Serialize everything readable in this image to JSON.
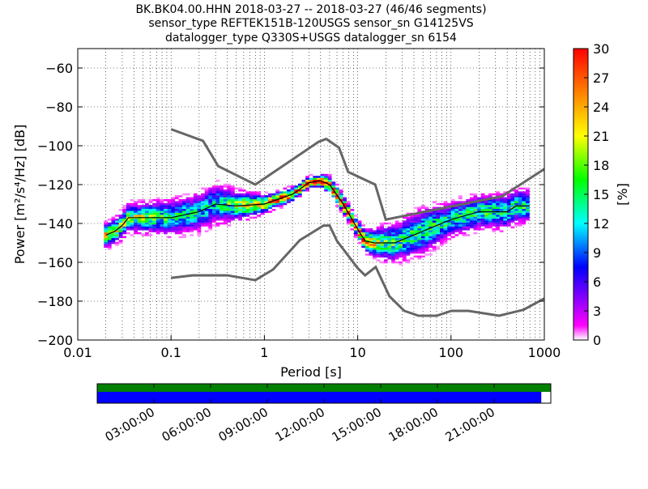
{
  "chart_data": {
    "type": "heatmap",
    "title_lines": [
      "BK.BK04.00.HHN   2018-03-27 -- 2018-03-27  (46/46 segments)",
      "sensor_type REFTEK151B-120USGS sensor_sn G14125VS",
      "datalogger_type Q330S+USGS datalogger_sn 6154"
    ],
    "xlabel": "Period [s]",
    "ylabel": "Power [m²/s⁴/Hz] [dB]",
    "xscale": "log",
    "xlim": [
      0.01,
      1000
    ],
    "ylim": [
      -200,
      -50
    ],
    "xticks": [
      0.01,
      0.1,
      1,
      10,
      100,
      1000
    ],
    "xtick_labels": [
      "0.01",
      "0.1",
      "1",
      "10",
      "100",
      "1000"
    ],
    "yticks": [
      -200,
      -180,
      -160,
      -140,
      -120,
      -100,
      -80,
      -60
    ],
    "ytick_labels": [
      "−200",
      "−180",
      "−160",
      "−140",
      "−120",
      "−100",
      "−80",
      "−60"
    ],
    "grid": true,
    "colorbar": {
      "label": "[%]",
      "range": [
        0,
        30
      ],
      "ticks": [
        0,
        3,
        6,
        9,
        12,
        15,
        18,
        21,
        24,
        27,
        30
      ],
      "tick_labels": [
        "0",
        "3",
        "6",
        "9",
        "12",
        "15",
        "18",
        "21",
        "24",
        "27",
        "30"
      ],
      "colormap": [
        "#ffffff",
        "#ff00ff",
        "#8000ff",
        "#0000ff",
        "#00ffff",
        "#00ff00",
        "#ffff00",
        "#ff8000",
        "#ff0000"
      ]
    },
    "noise_model_high": [
      [
        0.1,
        -91.5
      ],
      [
        0.22,
        -97.5
      ],
      [
        0.32,
        -110.5
      ],
      [
        0.8,
        -120
      ],
      [
        3.8,
        -98
      ],
      [
        4.6,
        -96.5
      ],
      [
        6.3,
        -101
      ],
      [
        7.9,
        -113.5
      ],
      [
        15.4,
        -120
      ],
      [
        20,
        -138
      ],
      [
        354,
        -126
      ],
      [
        1000,
        -112
      ]
    ],
    "noise_model_low": [
      [
        0.1,
        -168
      ],
      [
        0.17,
        -166.7
      ],
      [
        0.4,
        -166.7
      ],
      [
        0.8,
        -169.2
      ],
      [
        1.24,
        -163.7
      ],
      [
        2.4,
        -148.6
      ],
      [
        4.3,
        -141.1
      ],
      [
        5,
        -141.1
      ],
      [
        6,
        -149
      ],
      [
        10,
        -163
      ],
      [
        12,
        -166.7
      ],
      [
        15.6,
        -162.4
      ],
      [
        21.9,
        -177.5
      ],
      [
        31.6,
        -185
      ],
      [
        45,
        -187.5
      ],
      [
        70,
        -187.5
      ],
      [
        101,
        -185
      ],
      [
        154,
        -185
      ],
      [
        328,
        -187.5
      ],
      [
        600,
        -184.4
      ],
      [
        1000,
        -178.6
      ]
    ],
    "mode_line": [
      [
        0.02,
        -146
      ],
      [
        0.025,
        -144
      ],
      [
        0.03,
        -141
      ],
      [
        0.035,
        -137
      ],
      [
        0.1,
        -137
      ],
      [
        0.2,
        -134
      ],
      [
        0.3,
        -130
      ],
      [
        0.5,
        -131
      ],
      [
        1,
        -130
      ],
      [
        2,
        -125
      ],
      [
        3,
        -119
      ],
      [
        4,
        -118
      ],
      [
        5,
        -120
      ],
      [
        7,
        -130
      ],
      [
        10,
        -143
      ],
      [
        12,
        -149
      ],
      [
        15,
        -150
      ],
      [
        25,
        -150
      ],
      [
        50,
        -144
      ],
      [
        100,
        -138
      ],
      [
        200,
        -134
      ],
      [
        400,
        -134
      ],
      [
        500,
        -131
      ],
      [
        700,
        -131
      ]
    ],
    "density_spread": [
      [
        0.02,
        4,
        22
      ],
      [
        0.1,
        6,
        14
      ],
      [
        0.3,
        7,
        12
      ],
      [
        1,
        3,
        25
      ],
      [
        3,
        2,
        30
      ],
      [
        6,
        3,
        30
      ],
      [
        10,
        3,
        28
      ],
      [
        20,
        6,
        16
      ],
      [
        50,
        8,
        14
      ],
      [
        100,
        6,
        14
      ],
      [
        500,
        6,
        14
      ],
      [
        700,
        6,
        14
      ]
    ],
    "time_coverage": {
      "tick_labels": [
        "03:00:00",
        "06:00:00",
        "09:00:00",
        "12:00:00",
        "15:00:00",
        "18:00:00",
        "21:00:00"
      ],
      "data_fraction": 1.0,
      "processed_fraction": 0.979,
      "data_color": "#008000",
      "processed_color": "#0000ff"
    }
  }
}
